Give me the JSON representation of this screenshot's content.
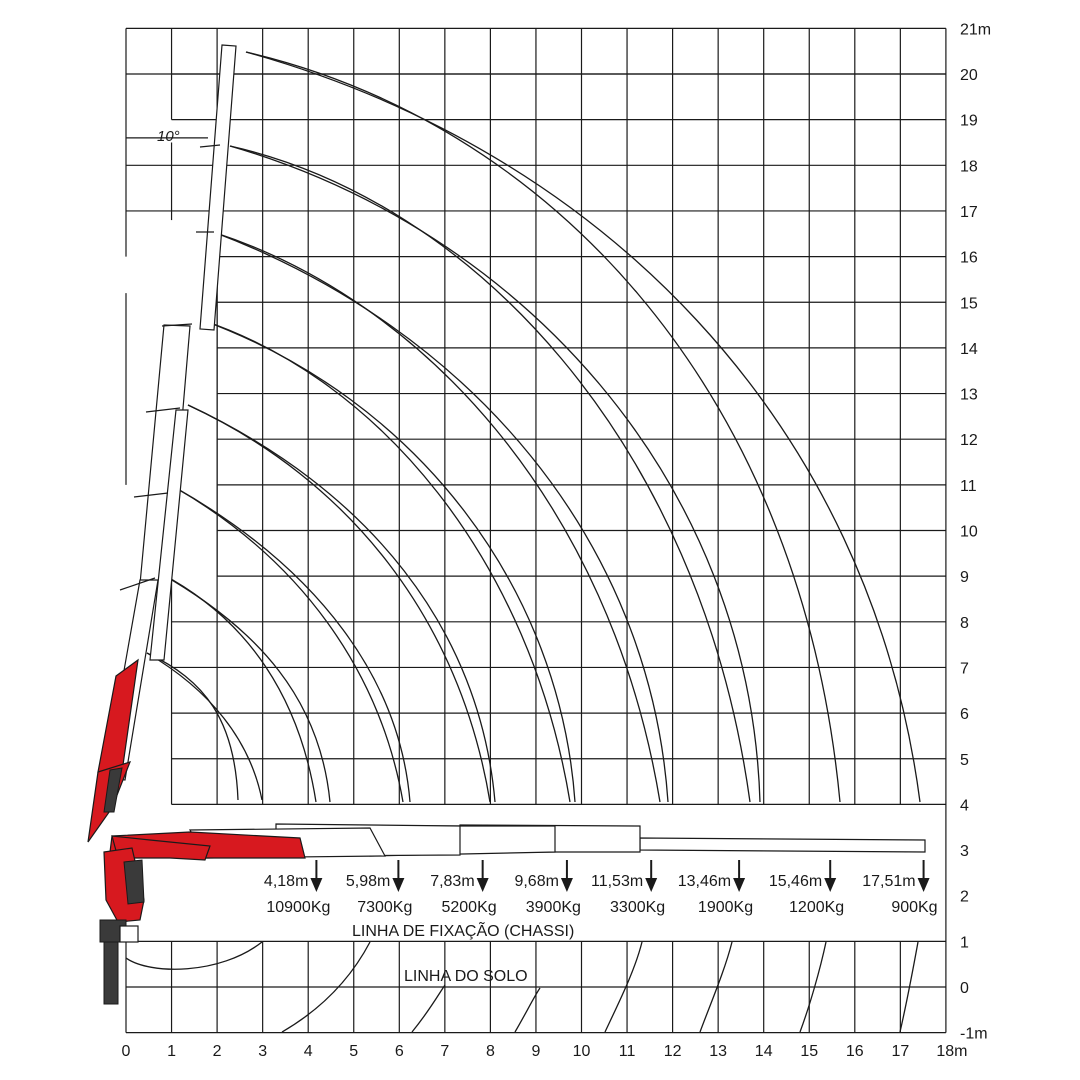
{
  "diagram": {
    "x_axis": {
      "ticks": [
        "0",
        "1",
        "2",
        "3",
        "4",
        "5",
        "6",
        "7",
        "8",
        "9",
        "10",
        "11",
        "12",
        "13",
        "14",
        "15",
        "16",
        "17",
        "18m"
      ]
    },
    "y_axis": {
      "ticks": [
        "-1m",
        "0",
        "1",
        "2",
        "3",
        "4",
        "5",
        "6",
        "7",
        "8",
        "9",
        "10",
        "11",
        "12",
        "13",
        "14",
        "15",
        "16",
        "17",
        "18",
        "19",
        "20",
        "21m"
      ]
    },
    "angle_note": "10°",
    "fixation_line_label": "LINHA DE FIXAÇÃO (CHASSI)",
    "ground_line_label": "LINHA DO SOLO",
    "colors": {
      "boom_red": "#d7191f",
      "line": "#1a1a1a"
    },
    "load_points": [
      {
        "reach": "4,18m",
        "x_m": 4.18,
        "load": "10900Kg"
      },
      {
        "reach": "5,98m",
        "x_m": 5.98,
        "load": "7300Kg"
      },
      {
        "reach": "7,83m",
        "x_m": 7.83,
        "load": "5200Kg"
      },
      {
        "reach": "9,68m",
        "x_m": 9.68,
        "load": "3900Kg"
      },
      {
        "reach": "11,53m",
        "x_m": 11.53,
        "load": "3300Kg"
      },
      {
        "reach": "13,46m",
        "x_m": 13.46,
        "load": "1900Kg"
      },
      {
        "reach": "15,46m",
        "x_m": 15.46,
        "load": "1200Kg"
      },
      {
        "reach": "17,51m",
        "x_m": 17.51,
        "load": "900Kg"
      }
    ]
  }
}
